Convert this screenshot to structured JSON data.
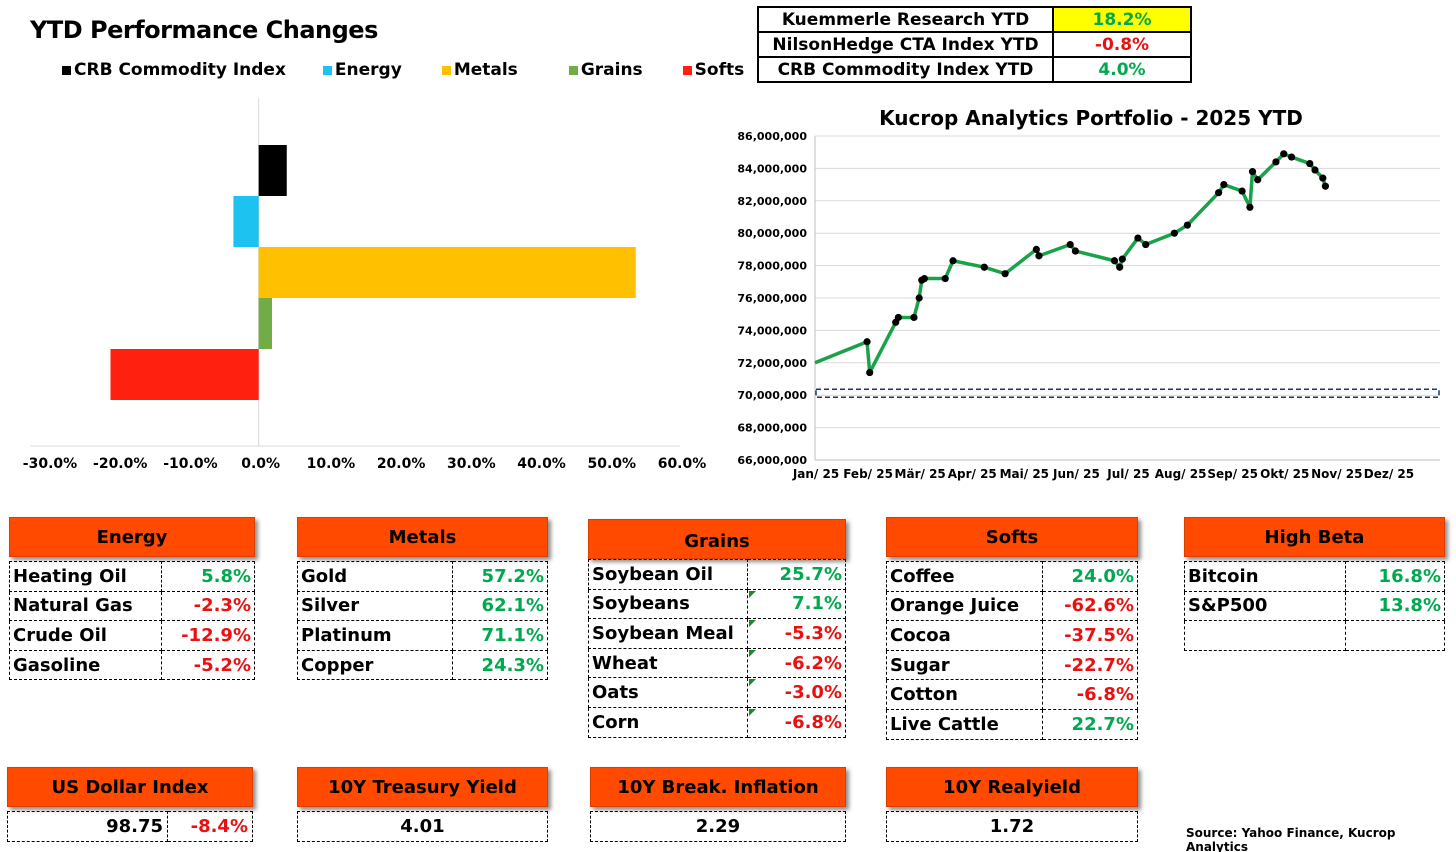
{
  "bar_chart": {
    "title": "YTD Performance Changes",
    "legend": [
      {
        "name": "CRB Commodity Index",
        "color": "#000000"
      },
      {
        "name": "Energy",
        "color": "#1ec2f0"
      },
      {
        "name": "Metals",
        "color": "#ffc000"
      },
      {
        "name": "Grains",
        "color": "#70ad47"
      },
      {
        "name": "Softs",
        "color": "#ff2010"
      }
    ],
    "ticks": [
      "-30.0%",
      "-20.0%",
      "-10.0%",
      "0.0%",
      "10.0%",
      "20.0%",
      "30.0%",
      "40.0%",
      "50.0%",
      "60.0%"
    ]
  },
  "summary": [
    {
      "label": "Kuemmerle Research YTD",
      "value": "18.2%",
      "bg": "#ffff00",
      "color": "#00a84f"
    },
    {
      "label": "NilsonHedge CTA Index YTD",
      "value": "-0.8%",
      "bg": "#ffffff",
      "color": "#e81010"
    },
    {
      "label": "CRB Commodity Index YTD",
      "value": "4.0%",
      "bg": "#ffffff",
      "color": "#00a84f"
    }
  ],
  "line_chart": {
    "title": "Kucrop Analytics Portfolio - 2025 YTD",
    "y_ticks": [
      "66,000,000",
      "68,000,000",
      "70,000,000",
      "72,000,000",
      "74,000,000",
      "76,000,000",
      "78,000,000",
      "80,000,000",
      "82,000,000",
      "84,000,000",
      "86,000,000"
    ],
    "x_ticks": [
      "Jan/ 25",
      "Feb/ 25",
      "Mär/ 25",
      "Apr/ 25",
      "Mai/ 25",
      "Jun/ 25",
      "Jul/ 25",
      "Aug/ 25",
      "Sep/ 25",
      "Okt/ 25",
      "Nov/ 25",
      "Dez/ 25"
    ]
  },
  "chart_data": [
    {
      "type": "bar",
      "orientation": "horizontal",
      "title": "YTD Performance Changes",
      "categories": [
        "CRB Commodity Index",
        "Energy",
        "Metals",
        "Grains",
        "Softs"
      ],
      "values": [
        4.0,
        -3.6,
        53.7,
        1.9,
        -21.1
      ],
      "colors": [
        "#000000",
        "#1ec2f0",
        "#ffc000",
        "#70ad47",
        "#ff2010"
      ],
      "xlim": [
        -30,
        60
      ],
      "x_unit": "%",
      "legend_placement": "top"
    },
    {
      "type": "line",
      "title": "Kucrop Analytics Portfolio - 2025 YTD",
      "ylim": [
        66000000,
        86000000
      ],
      "xlim_months": [
        0,
        12
      ],
      "series": [
        {
          "color": "#19a24a",
          "x_months": [
            0.0,
            1.0,
            1.05,
            1.55,
            1.6,
            1.9,
            2.0,
            2.05,
            2.1,
            2.5,
            2.65,
            3.25,
            3.65,
            4.25,
            4.3,
            4.9,
            5.0,
            5.75,
            5.85,
            5.9,
            6.2,
            6.35,
            6.9,
            7.15,
            7.75,
            7.85,
            8.2,
            8.35,
            8.4,
            8.5,
            8.85,
            9.0,
            9.15,
            9.5,
            9.6,
            9.75,
            9.8
          ],
          "values": [
            72000000,
            73300000,
            71400000,
            74500000,
            74800000,
            74800000,
            76000000,
            77100000,
            77200000,
            77200000,
            78300000,
            77900000,
            77500000,
            79000000,
            78600000,
            79300000,
            78900000,
            78300000,
            77900000,
            78400000,
            79700000,
            79300000,
            80000000,
            80500000,
            82500000,
            83000000,
            82600000,
            81600000,
            83800000,
            83300000,
            84400000,
            84900000,
            84700000,
            84300000,
            83900000,
            83400000,
            82900000
          ]
        }
      ],
      "reference_line": 70000000
    }
  ],
  "panels": {
    "energy": {
      "title": "Energy",
      "rows": [
        {
          "name": "Heating Oil",
          "value": "5.8%",
          "sign": "pos"
        },
        {
          "name": "Natural Gas",
          "value": "-2.3%",
          "sign": "neg"
        },
        {
          "name": "Crude Oil",
          "value": "-12.9%",
          "sign": "neg"
        },
        {
          "name": "Gasoline",
          "value": "-5.2%",
          "sign": "neg"
        }
      ]
    },
    "metals": {
      "title": "Metals",
      "rows": [
        {
          "name": "Gold",
          "value": "57.2%",
          "sign": "pos"
        },
        {
          "name": "Silver",
          "value": "62.1%",
          "sign": "pos"
        },
        {
          "name": "Platinum",
          "value": "71.1%",
          "sign": "pos"
        },
        {
          "name": "Copper",
          "value": "24.3%",
          "sign": "pos"
        }
      ]
    },
    "grains": {
      "title": "Grains",
      "rows": [
        {
          "name": "Soybean Oil",
          "value": "25.7%",
          "sign": "pos"
        },
        {
          "name": "Soybeans",
          "value": "7.1%",
          "sign": "pos"
        },
        {
          "name": "Soybean Meal",
          "value": "-5.3%",
          "sign": "neg"
        },
        {
          "name": "Wheat",
          "value": "-6.2%",
          "sign": "neg"
        },
        {
          "name": "Oats",
          "value": "-3.0%",
          "sign": "neg"
        },
        {
          "name": "Corn",
          "value": "-6.8%",
          "sign": "neg"
        }
      ]
    },
    "softs": {
      "title": "Softs",
      "rows": [
        {
          "name": "Coffee",
          "value": "24.0%",
          "sign": "pos"
        },
        {
          "name": "Orange Juice",
          "value": "-62.6%",
          "sign": "neg"
        },
        {
          "name": "Cocoa",
          "value": "-37.5%",
          "sign": "neg"
        },
        {
          "name": "Sugar",
          "value": "-22.7%",
          "sign": "neg"
        },
        {
          "name": "Cotton",
          "value": "-6.8%",
          "sign": "neg"
        },
        {
          "name": "Live Cattle",
          "value": "22.7%",
          "sign": "pos"
        }
      ]
    },
    "highbeta": {
      "title": "High Beta",
      "rows": [
        {
          "name": "Bitcoin",
          "value": "16.8%",
          "sign": "pos"
        },
        {
          "name": "S&P500",
          "value": "13.8%",
          "sign": "pos"
        },
        {
          "name": "",
          "value": "",
          "sign": "pos"
        }
      ]
    }
  },
  "indicators": {
    "usd": {
      "title": "US Dollar Index",
      "value": "98.75",
      "change": "-8.4%"
    },
    "tsy": {
      "title": "10Y Treasury Yield",
      "value": "4.01"
    },
    "infl": {
      "title": "10Y Break. Inflation",
      "value": "2.29"
    },
    "real": {
      "title": "10Y Realyield",
      "value": "1.72"
    }
  },
  "source": "Source: Yahoo Finance, Kucrop Analytics"
}
